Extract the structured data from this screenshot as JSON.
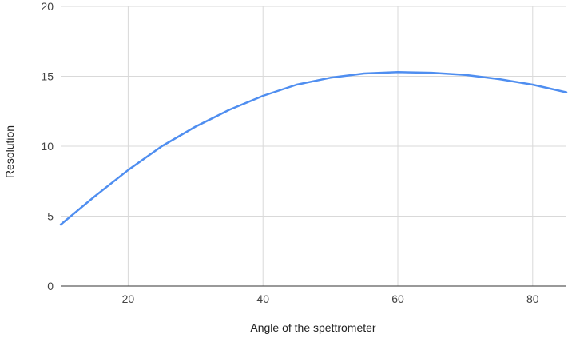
{
  "chart_data": {
    "type": "line",
    "title": "",
    "xlabel": "Angle of the spettrometer",
    "ylabel": "Resolution",
    "xlim": [
      10,
      85
    ],
    "ylim": [
      0,
      20
    ],
    "x_ticks": [
      20,
      40,
      60,
      80
    ],
    "y_ticks": [
      0,
      5,
      10,
      15,
      20
    ],
    "grid": true,
    "legend": "none",
    "series": [
      {
        "color": "#4f8ef0",
        "x": [
          10,
          15,
          20,
          25,
          30,
          35,
          40,
          45,
          50,
          55,
          60,
          65,
          70,
          75,
          80,
          85
        ],
        "y": [
          4.4,
          6.4,
          8.3,
          10.0,
          11.4,
          12.6,
          13.6,
          14.4,
          14.9,
          15.2,
          15.3,
          15.25,
          15.1,
          14.8,
          14.4,
          13.85
        ]
      }
    ]
  }
}
